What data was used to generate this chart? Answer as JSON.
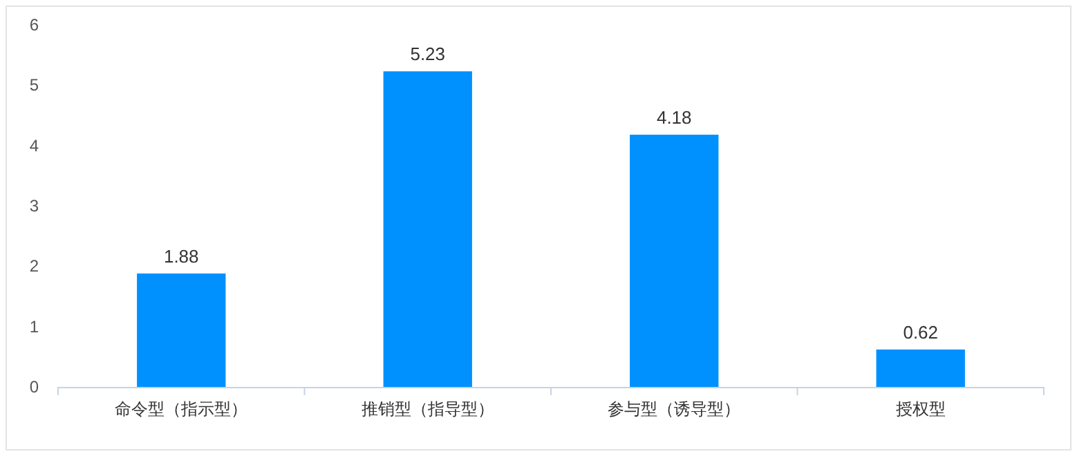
{
  "chart_data": {
    "type": "bar",
    "categories": [
      "命令型（指示型）",
      "推销型（指导型）",
      "参与型（诱导型）",
      "授权型"
    ],
    "values": [
      1.88,
      5.23,
      4.18,
      0.62
    ],
    "color": "#0091ff",
    "ylim": [
      0,
      6
    ],
    "yticks": [
      0,
      1,
      2,
      3,
      4,
      5,
      6
    ],
    "grid": false,
    "data_labels": true
  }
}
